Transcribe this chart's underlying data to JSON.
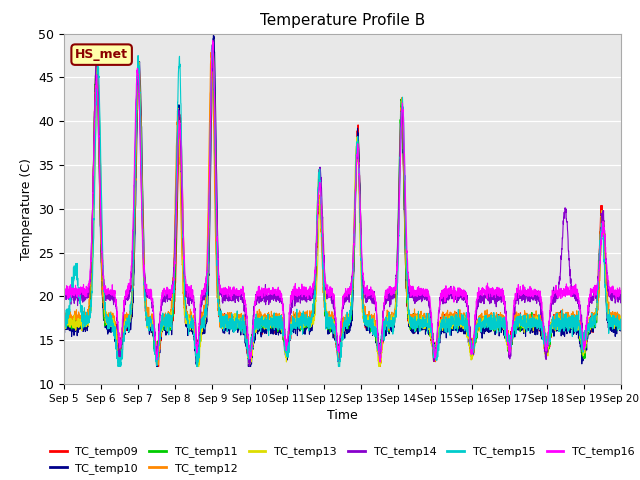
{
  "title": "Temperature Profile B",
  "xlabel": "Time",
  "ylabel": "Temperature (C)",
  "ylim": [
    10,
    50
  ],
  "xlim_days": [
    0,
    15
  ],
  "legend_label": "HS_met",
  "series_names": [
    "TC_temp09",
    "TC_temp10",
    "TC_temp11",
    "TC_temp12",
    "TC_temp13",
    "TC_temp14",
    "TC_temp15",
    "TC_temp16"
  ],
  "series_colors": [
    "#ff0000",
    "#00008b",
    "#00cc00",
    "#ff8800",
    "#dddd00",
    "#8800cc",
    "#00cccc",
    "#ff00ff"
  ],
  "bg_color": "#e8e8e8",
  "x_tick_labels": [
    "Sep 5",
    "Sep 6",
    "Sep 7",
    "Sep 8",
    "Sep 9",
    "Sep 10",
    "Sep 11",
    "Sep 12",
    "Sep 13",
    "Sep 14",
    "Sep 15",
    "Sep 16",
    "Sep 17",
    "Sep 18",
    "Sep 19",
    "Sep 20"
  ],
  "x_tick_positions": [
    0,
    1,
    2,
    3,
    4,
    5,
    6,
    7,
    8,
    9,
    10,
    11,
    12,
    13,
    14,
    15
  ],
  "yticks": [
    10,
    15,
    20,
    25,
    30,
    35,
    40,
    45,
    50
  ]
}
